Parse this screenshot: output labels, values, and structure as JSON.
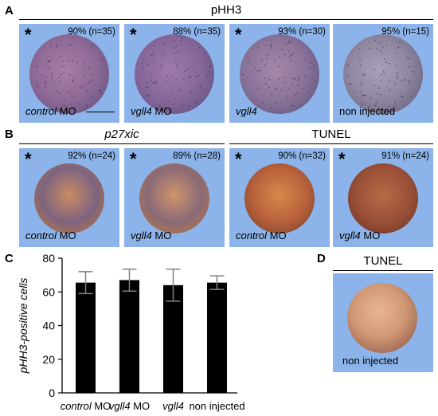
{
  "panels": {
    "A": {
      "letter": "A",
      "heading": "pHH3",
      "tiles": [
        {
          "star": "*",
          "pct": "90% (n=35)",
          "cap_it": "control",
          "cap_rest": " MO",
          "scalebar": true
        },
        {
          "star": "*",
          "pct": "88% (n=35)",
          "cap_it": "vgll4",
          "cap_rest": " MO"
        },
        {
          "star": "*",
          "pct": "93% (n=30)",
          "cap_it": "vgll4",
          "cap_rest": ""
        },
        {
          "star": "",
          "pct": "95% (n=15)",
          "cap_it": "",
          "cap_rest": "non injected"
        }
      ]
    },
    "B": {
      "letter": "B",
      "heading_left": "p27xic",
      "heading_right": "TUNEL",
      "tiles": [
        {
          "star": "*",
          "pct": "92% (n=24)",
          "cap_it": "control",
          "cap_rest": " MO"
        },
        {
          "star": "*",
          "pct": "89% (n=28)",
          "cap_it": "vgll4",
          "cap_rest": " MO"
        },
        {
          "star": "*",
          "pct": "90% (n=32)",
          "cap_it": "control",
          "cap_rest": " MO"
        },
        {
          "star": "*",
          "pct": "91% (n=24)",
          "cap_it": "vgll4",
          "cap_rest": " MO"
        }
      ]
    },
    "C": {
      "letter": "C"
    },
    "D": {
      "letter": "D",
      "heading": "TUNEL",
      "caption": "non injected"
    }
  },
  "colors": {
    "tile_bg": "#8cb4ea",
    "bar": "#000000",
    "error_bar": "#808080"
  },
  "chart_data": {
    "type": "bar",
    "categories": [
      "control MO",
      "vgll4 MO",
      "vgll4",
      "non injected"
    ],
    "category_parts": [
      {
        "it": "control",
        "rest": " MO"
      },
      {
        "it": "vgll4",
        "rest": " MO"
      },
      {
        "it": "vgll4",
        "rest": ""
      },
      {
        "it": "",
        "rest": "non injected"
      }
    ],
    "values": [
      65.5,
      67,
      64,
      65.5
    ],
    "errors": [
      6.5,
      6.5,
      9.5,
      4
    ],
    "ylabel": "pHH3-positive cells",
    "ylim": [
      0,
      80
    ],
    "yticks": [
      0,
      20,
      40,
      60,
      80
    ],
    "grid": false
  }
}
